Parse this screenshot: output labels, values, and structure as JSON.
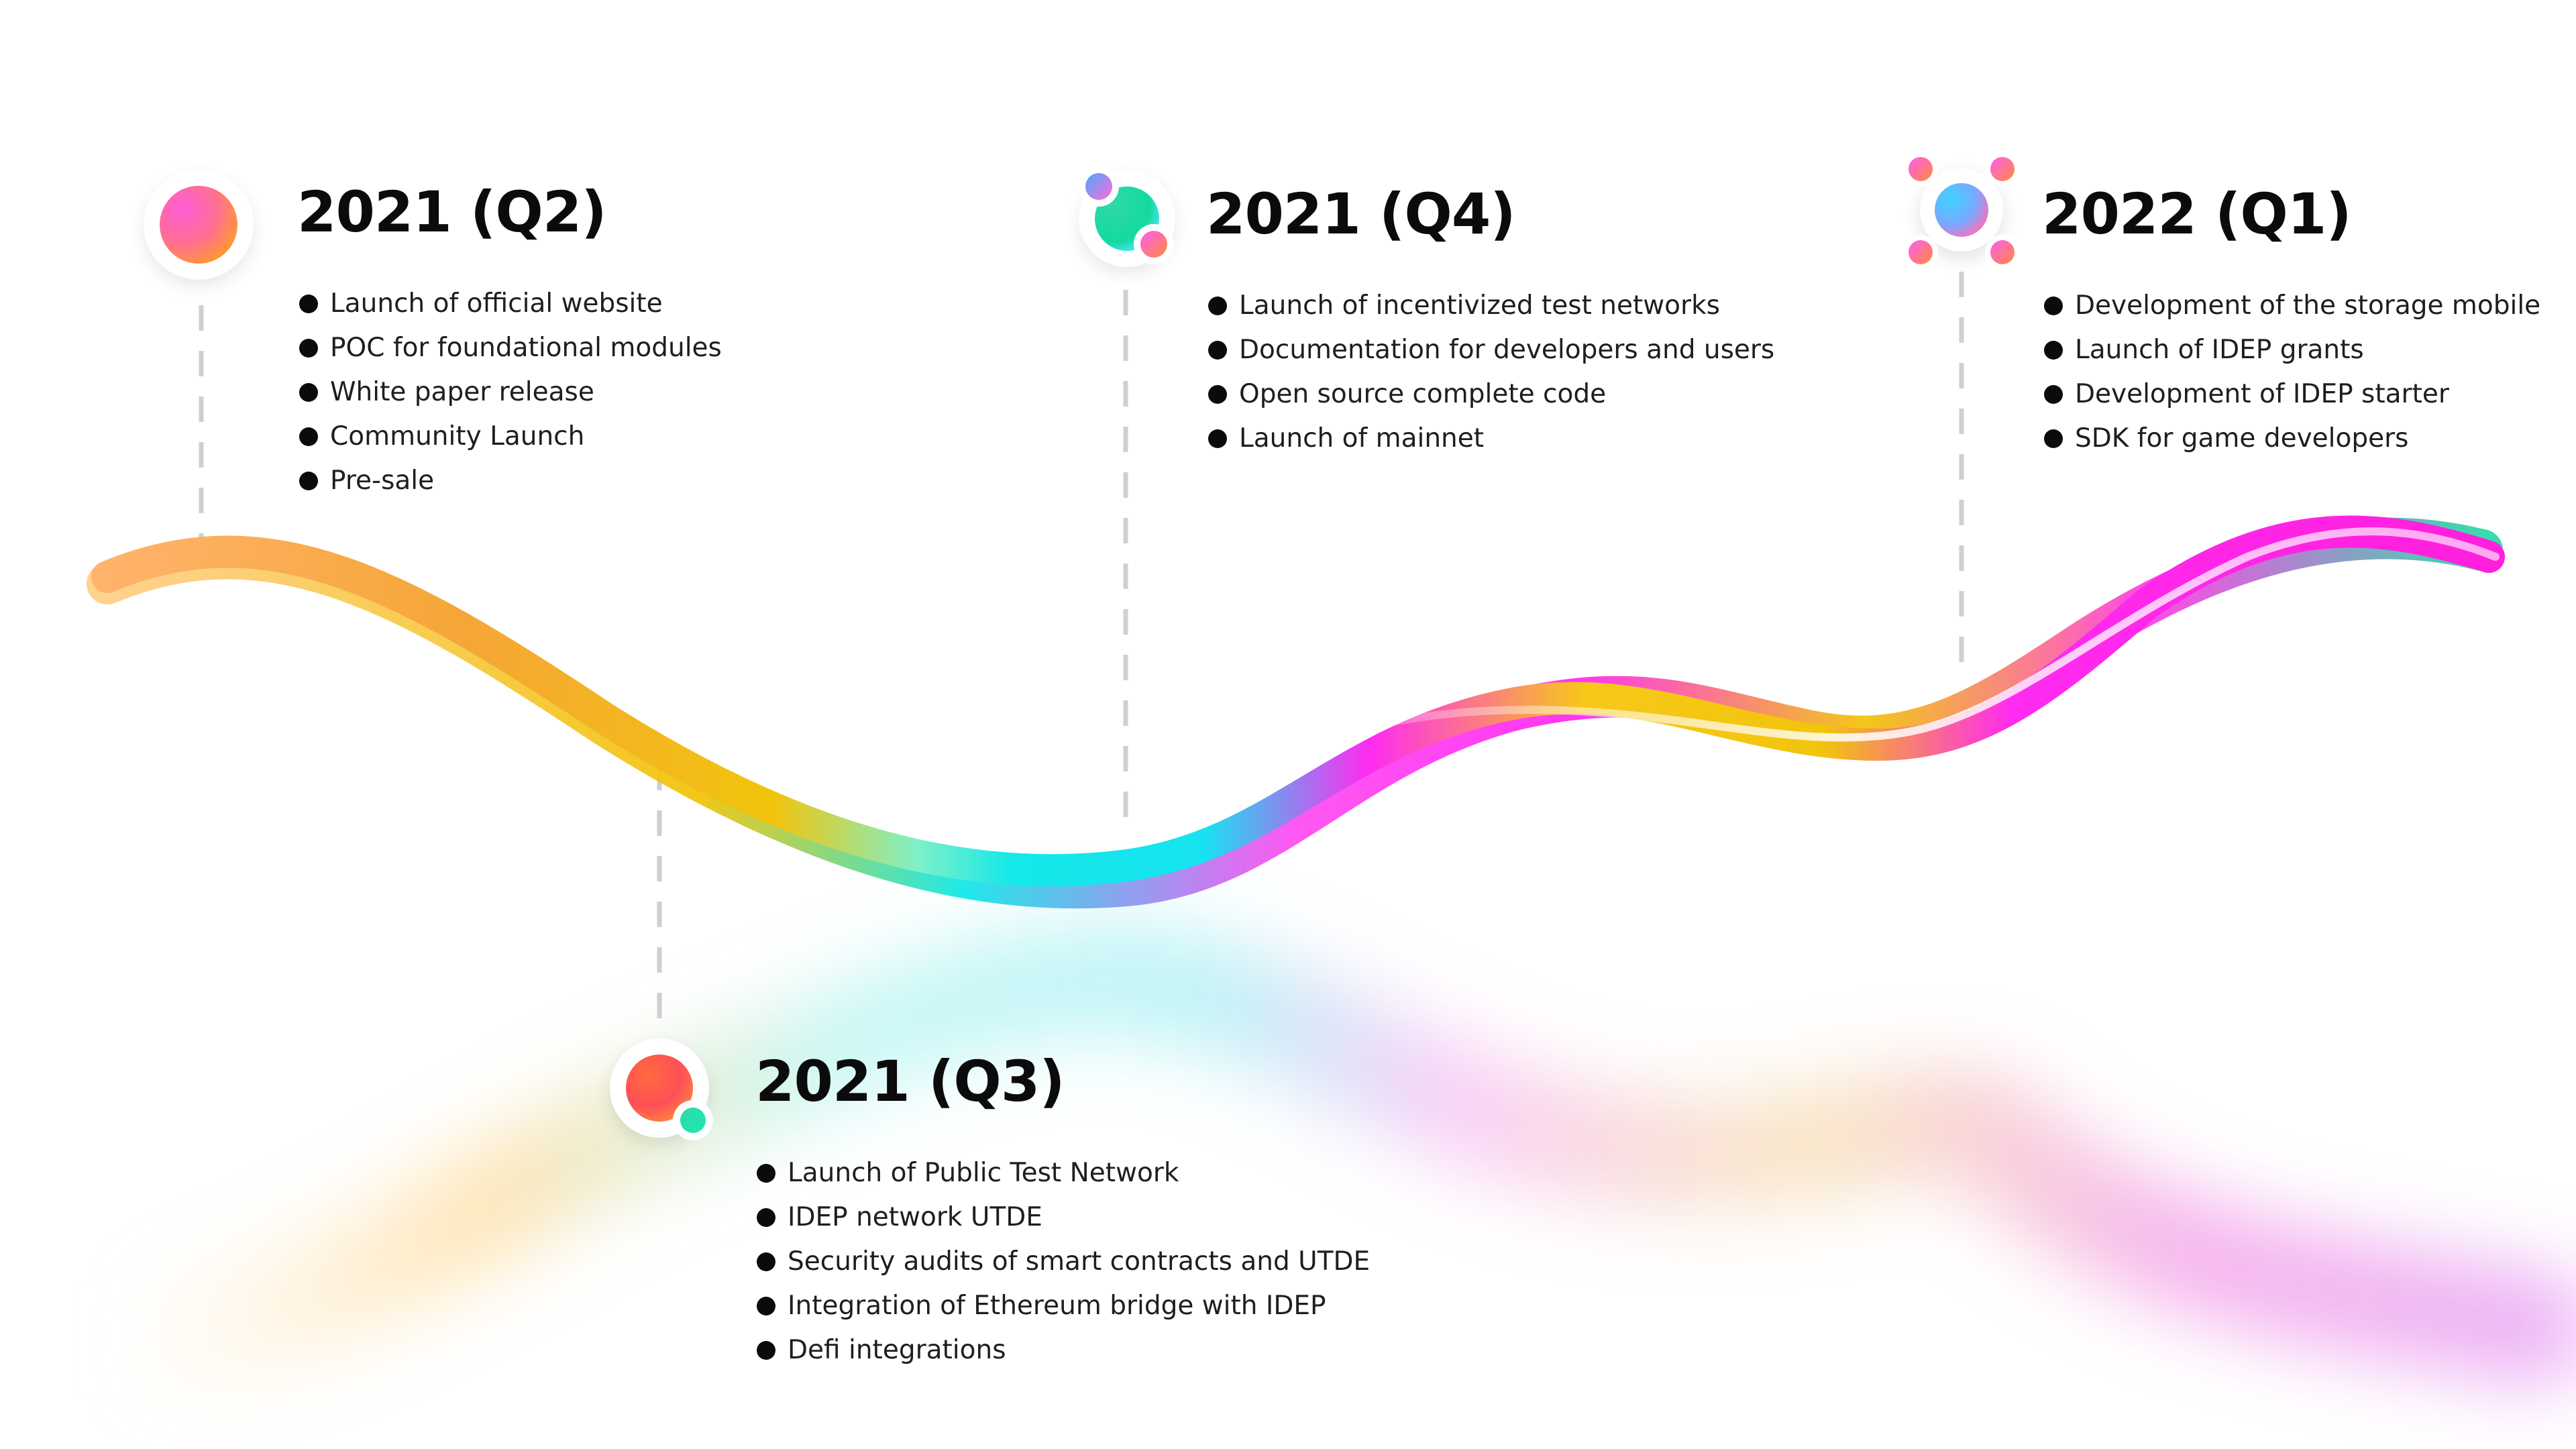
{
  "milestones": [
    {
      "id": "q2-2021",
      "title": "2021 (Q2)",
      "icon": "single-orb-icon",
      "items": [
        "Launch of official website",
        "POC for foundational modules",
        "White paper release",
        "Community Launch",
        "Pre-sale"
      ]
    },
    {
      "id": "q3-2021",
      "title": "2021 (Q3)",
      "icon": "orb-with-satellite-icon",
      "items": [
        "Launch of Public Test Network",
        "IDEP network UTDE",
        "Security audits of smart contracts and UTDE",
        "Integration of Ethereum bridge with IDEP",
        "Defi integrations"
      ]
    },
    {
      "id": "q4-2021",
      "title": "2021 (Q4)",
      "icon": "orb-with-two-satellites-icon",
      "items": [
        "Launch of incentivized test networks",
        "Documentation for developers and users",
        "Open source complete code",
        "Launch of mainnet"
      ]
    },
    {
      "id": "q1-2022",
      "title": "2022 (Q1)",
      "icon": "orb-with-four-satellites-icon",
      "items": [
        "Development of the storage mobile",
        "Launch of IDEP grants",
        "Development of IDEP starter",
        "SDK for game developers"
      ]
    }
  ],
  "colors": {
    "orange": "#ff8a3d",
    "magenta": "#ff2bf0",
    "yellow": "#f2c40c",
    "cyan": "#14e8e8",
    "teal": "#2fd9a7",
    "connector": "#cfcfcf",
    "text": "#1e1e1e"
  }
}
